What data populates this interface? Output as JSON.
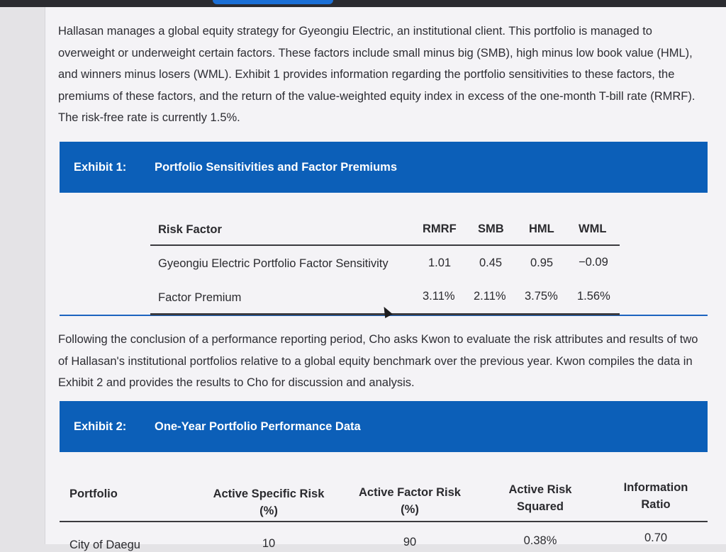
{
  "intro_paragraph": "Hallasan manages a global equity strategy for Gyeongiu Electric, an institutional client. This portfolio is managed to overweight or underweight certain factors. These factors include small minus big (SMB), high minus low book value (HML), and winners minus losers (WML). Exhibit 1 provides information regarding the portfolio sensitivities to these factors, the premiums of these factors, and the return of the value-weighted equity index in excess of the one-month T-bill rate (RMRF). The risk-free rate is currently 1.5%.",
  "exhibit1": {
    "label": "Exhibit 1:",
    "title": "Portfolio Sensitivities and Factor Premiums",
    "headers": [
      "Risk Factor",
      "RMRF",
      "SMB",
      "HML",
      "WML"
    ],
    "rows": [
      {
        "label": "Gyeongiu Electric Portfolio Factor Sensitivity",
        "values": [
          "1.01",
          "0.45",
          "0.95",
          "−0.09"
        ]
      },
      {
        "label": "Factor Premium",
        "values": [
          "3.11%",
          "2.11%",
          "3.75%",
          "1.56%"
        ]
      }
    ]
  },
  "middle_paragraph": "Following the conclusion of a performance reporting period, Cho asks Kwon to evaluate the risk attributes and results of two of Hallasan's institutional portfolios relative to a global equity benchmark over the previous year. Kwon compiles the data in Exhibit 2 and provides the results to Cho for discussion and analysis.",
  "exhibit2": {
    "label": "Exhibit 2:",
    "title": "One-Year Portfolio Performance Data",
    "headers": {
      "portfolio": "Portfolio",
      "active_specific_line1": "Active Specific Risk",
      "active_specific_line2": "(%)",
      "active_factor_line1": "Active Factor Risk",
      "active_factor_line2": "(%)",
      "active_risk_sq_line1": "Active Risk",
      "active_risk_sq_line2": "Squared",
      "info_ratio_line1": "Information",
      "info_ratio_line2": "Ratio"
    },
    "rows": [
      {
        "portfolio": "City of Daegu",
        "active_specific": "10",
        "active_factor": "90",
        "active_risk_sq": "0.38%",
        "info_ratio": "0.70"
      }
    ]
  },
  "colors": {
    "exhibit_header_bg": "#0c5fb8",
    "rule_blue": "#1c63c0",
    "progress_accent": "#1b6fd6"
  }
}
